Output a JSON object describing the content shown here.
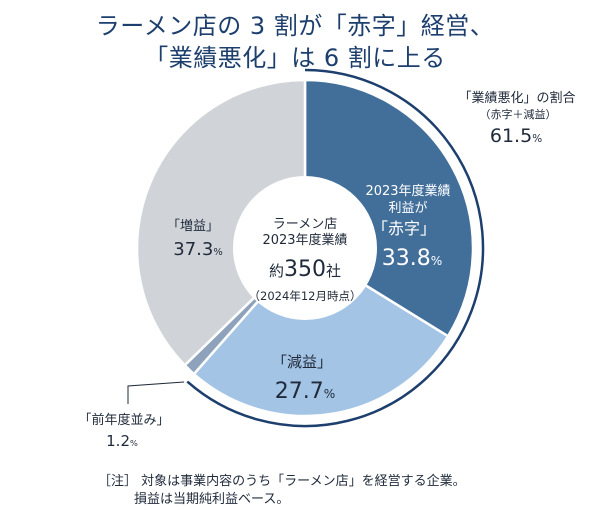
{
  "title": {
    "line1": "ラーメン店の 3 割が「赤字」経営、",
    "line2": "「業績悪化」は 6 割に上る"
  },
  "center": {
    "line1": "ラーメン店",
    "line2": "2023年度業績",
    "count_prefix": "約",
    "count_value": "350",
    "count_unit": "社",
    "date": "（2024年12月時点）"
  },
  "chart_data": {
    "type": "pie",
    "title": "ラーメン店の 3 割が「赤字」経営、「業績悪化」は 6 割に上る",
    "unit": "%",
    "slices": [
      {
        "label": "「赤字」",
        "prelabel": [
          "2023年度業績",
          "利益が"
        ],
        "value": 33.8,
        "color": "#426e9a"
      },
      {
        "label": "「減益」",
        "value": 27.7,
        "color": "#a3c4e5"
      },
      {
        "label": "「前年度並み」",
        "value": 1.2,
        "color": "#8ea3bb"
      },
      {
        "label": "「増益」",
        "value": 37.3,
        "color": "#d0d4d9"
      }
    ],
    "bracket": {
      "label": "「業績悪化」の割合",
      "sublabel": "（赤字＋減益）",
      "value": 61.5
    }
  },
  "notes": {
    "line1": "［注］ 対象は事業内容のうち「ラーメン店」を経営する企業。",
    "line2": "損益は当期純利益ベース。"
  }
}
